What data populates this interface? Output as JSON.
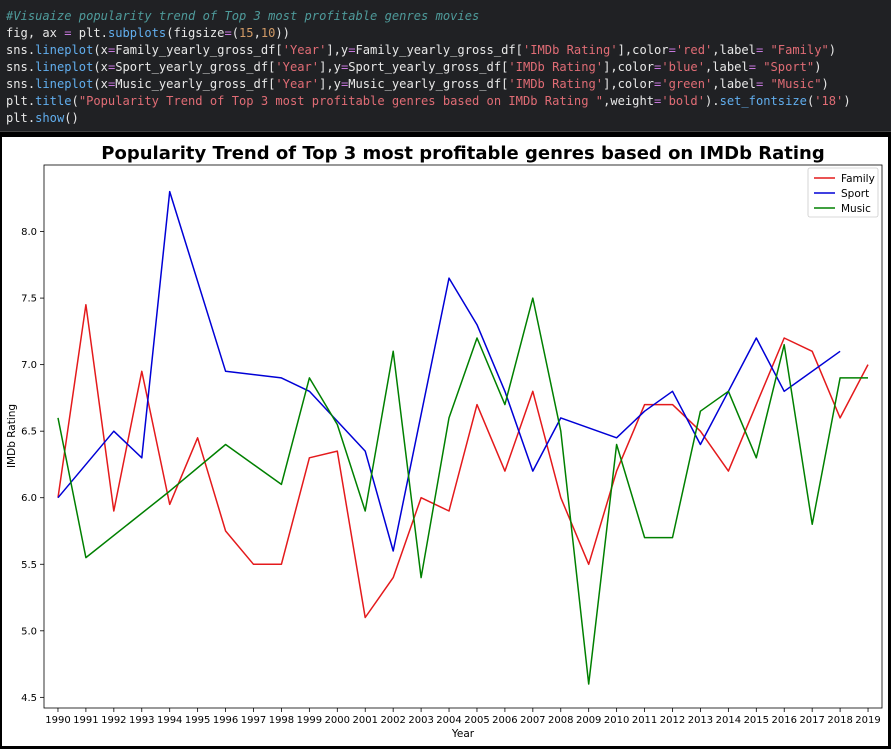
{
  "code_cell": {
    "lines": [
      [
        {
          "t": "#Visuaize popularity trend of Top 3 most profitable genres movies",
          "c": "comment"
        }
      ],
      [
        {
          "t": "fig, ax "
        },
        {
          "t": "=",
          "c": "op"
        },
        {
          "t": " plt."
        },
        {
          "t": "subplots",
          "c": "fn"
        },
        {
          "t": "(figsize"
        },
        {
          "t": "=",
          "c": "op"
        },
        {
          "t": "("
        },
        {
          "t": "15",
          "c": "num"
        },
        {
          "t": ","
        },
        {
          "t": "10",
          "c": "num"
        },
        {
          "t": "))"
        }
      ],
      [
        {
          "t": "sns."
        },
        {
          "t": "lineplot",
          "c": "fn"
        },
        {
          "t": "(x"
        },
        {
          "t": "=",
          "c": "op"
        },
        {
          "t": "Family_yearly_gross_df["
        },
        {
          "t": "'Year'",
          "c": "str"
        },
        {
          "t": "],y"
        },
        {
          "t": "=",
          "c": "op"
        },
        {
          "t": "Family_yearly_gross_df["
        },
        {
          "t": "'IMDb Rating'",
          "c": "str"
        },
        {
          "t": "],color"
        },
        {
          "t": "=",
          "c": "op"
        },
        {
          "t": "'red'",
          "c": "str"
        },
        {
          "t": ",label"
        },
        {
          "t": "=",
          "c": "op"
        },
        {
          "t": " "
        },
        {
          "t": "\"Family\"",
          "c": "str"
        },
        {
          "t": ")"
        }
      ],
      [
        {
          "t": "sns."
        },
        {
          "t": "lineplot",
          "c": "fn"
        },
        {
          "t": "(x"
        },
        {
          "t": "=",
          "c": "op"
        },
        {
          "t": "Sport_yearly_gross_df["
        },
        {
          "t": "'Year'",
          "c": "str"
        },
        {
          "t": "],y"
        },
        {
          "t": "=",
          "c": "op"
        },
        {
          "t": "Sport_yearly_gross_df["
        },
        {
          "t": "'IMDb Rating'",
          "c": "str"
        },
        {
          "t": "],color"
        },
        {
          "t": "=",
          "c": "op"
        },
        {
          "t": "'blue'",
          "c": "str"
        },
        {
          "t": ",label"
        },
        {
          "t": "=",
          "c": "op"
        },
        {
          "t": " "
        },
        {
          "t": "\"Sport\"",
          "c": "str"
        },
        {
          "t": ")"
        }
      ],
      [
        {
          "t": "sns."
        },
        {
          "t": "lineplot",
          "c": "fn"
        },
        {
          "t": "(x"
        },
        {
          "t": "=",
          "c": "op"
        },
        {
          "t": "Music_yearly_gross_df["
        },
        {
          "t": "'Year'",
          "c": "str"
        },
        {
          "t": "],y"
        },
        {
          "t": "=",
          "c": "op"
        },
        {
          "t": "Music_yearly_gross_df["
        },
        {
          "t": "'IMDb Rating'",
          "c": "str"
        },
        {
          "t": "],color"
        },
        {
          "t": "=",
          "c": "op"
        },
        {
          "t": "'green'",
          "c": "str"
        },
        {
          "t": ",label"
        },
        {
          "t": "=",
          "c": "op"
        },
        {
          "t": " "
        },
        {
          "t": "\"Music\"",
          "c": "str"
        },
        {
          "t": ")"
        }
      ],
      [
        {
          "t": "plt."
        },
        {
          "t": "title",
          "c": "fn"
        },
        {
          "t": "("
        },
        {
          "t": "\"Popularity Trend of Top 3 most profitable genres based on IMDb Rating \"",
          "c": "str"
        },
        {
          "t": ",weight"
        },
        {
          "t": "=",
          "c": "op"
        },
        {
          "t": "'bold'",
          "c": "str"
        },
        {
          "t": ")."
        },
        {
          "t": "set_fontsize",
          "c": "fn"
        },
        {
          "t": "("
        },
        {
          "t": "'18'",
          "c": "str"
        },
        {
          "t": ")"
        }
      ],
      [
        {
          "t": "plt."
        },
        {
          "t": "show",
          "c": "fn"
        },
        {
          "t": "()"
        }
      ]
    ]
  },
  "chart_data": {
    "type": "line",
    "title": "Popularity Trend of Top 3 most profitable genres based on IMDb Rating",
    "xlabel": "Year",
    "ylabel": "IMDb Rating",
    "x": [
      1990,
      1991,
      1992,
      1993,
      1994,
      1995,
      1996,
      1997,
      1998,
      1999,
      2000,
      2001,
      2002,
      2003,
      2004,
      2005,
      2006,
      2007,
      2008,
      2009,
      2010,
      2011,
      2012,
      2013,
      2014,
      2015,
      2016,
      2017,
      2018,
      2019
    ],
    "yticks": [
      4.5,
      5.0,
      5.5,
      6.0,
      6.5,
      7.0,
      7.5,
      8.0
    ],
    "ytick_labels": [
      "4.5",
      "5.0",
      "5.5",
      "6.0",
      "6.5",
      "7.0",
      "7.5",
      "8.0"
    ],
    "ylim": [
      4.42,
      8.5
    ],
    "xlim": [
      1989.5,
      2019.5
    ],
    "grid": false,
    "legend_position": "top-right",
    "series": [
      {
        "name": "Family",
        "color": "#e41a1c",
        "values": [
          {
            "x": 1990,
            "y": 6.0
          },
          {
            "x": 1991,
            "y": 7.45
          },
          {
            "x": 1992,
            "y": 5.9
          },
          {
            "x": 1993,
            "y": 6.95
          },
          {
            "x": 1994,
            "y": 5.95
          },
          {
            "x": 1995,
            "y": 6.45
          },
          {
            "x": 1996,
            "y": 5.75
          },
          {
            "x": 1997,
            "y": 5.5
          },
          {
            "x": 1998,
            "y": 5.5
          },
          {
            "x": 1999,
            "y": 6.3
          },
          {
            "x": 2000,
            "y": 6.35
          },
          {
            "x": 2001,
            "y": 5.1
          },
          {
            "x": 2002,
            "y": 5.4
          },
          {
            "x": 2003,
            "y": 6.0
          },
          {
            "x": 2004,
            "y": 5.9
          },
          {
            "x": 2005,
            "y": 6.7
          },
          {
            "x": 2006,
            "y": 6.2
          },
          {
            "x": 2007,
            "y": 6.8
          },
          {
            "x": 2008,
            "y": 6.0
          },
          {
            "x": 2009,
            "y": 5.5
          },
          {
            "x": 2010,
            "y": 6.2
          },
          {
            "x": 2011,
            "y": 6.7
          },
          {
            "x": 2012,
            "y": 6.7
          },
          {
            "x": 2013,
            "y": 6.5
          },
          {
            "x": 2014,
            "y": 6.2
          },
          {
            "x": 2015,
            "y": 6.7
          },
          {
            "x": 2016,
            "y": 7.2
          },
          {
            "x": 2017,
            "y": 7.1
          },
          {
            "x": 2018,
            "y": 6.6
          },
          {
            "x": 2019,
            "y": 7.0
          }
        ]
      },
      {
        "name": "Sport",
        "color": "#0000d6",
        "values": [
          {
            "x": 1990,
            "y": 6.0
          },
          {
            "x": 1992,
            "y": 6.5
          },
          {
            "x": 1993,
            "y": 6.3
          },
          {
            "x": 1994,
            "y": 8.3
          },
          {
            "x": 1996,
            "y": 6.95
          },
          {
            "x": 1998,
            "y": 6.9
          },
          {
            "x": 1999,
            "y": 6.8
          },
          {
            "x": 2001,
            "y": 6.35
          },
          {
            "x": 2002,
            "y": 5.6
          },
          {
            "x": 2004,
            "y": 7.65
          },
          {
            "x": 2005,
            "y": 7.3
          },
          {
            "x": 2006,
            "y": 6.8
          },
          {
            "x": 2007,
            "y": 6.2
          },
          {
            "x": 2008,
            "y": 6.6
          },
          {
            "x": 2010,
            "y": 6.45
          },
          {
            "x": 2011,
            "y": 6.65
          },
          {
            "x": 2012,
            "y": 6.8
          },
          {
            "x": 2013,
            "y": 6.4
          },
          {
            "x": 2014,
            "y": 6.8
          },
          {
            "x": 2015,
            "y": 7.2
          },
          {
            "x": 2016,
            "y": 6.8
          },
          {
            "x": 2018,
            "y": 7.1
          }
        ]
      },
      {
        "name": "Music",
        "color": "#008000",
        "values": [
          {
            "x": 1990,
            "y": 6.6
          },
          {
            "x": 1991,
            "y": 5.55
          },
          {
            "x": 1994,
            "y": 6.05
          },
          {
            "x": 1996,
            "y": 6.4
          },
          {
            "x": 1998,
            "y": 6.1
          },
          {
            "x": 1999,
            "y": 6.9
          },
          {
            "x": 2000,
            "y": 6.55
          },
          {
            "x": 2001,
            "y": 5.9
          },
          {
            "x": 2002,
            "y": 7.1
          },
          {
            "x": 2003,
            "y": 5.4
          },
          {
            "x": 2004,
            "y": 6.6
          },
          {
            "x": 2005,
            "y": 7.2
          },
          {
            "x": 2006,
            "y": 6.7
          },
          {
            "x": 2007,
            "y": 7.5
          },
          {
            "x": 2008,
            "y": 6.5
          },
          {
            "x": 2009,
            "y": 4.6
          },
          {
            "x": 2010,
            "y": 6.4
          },
          {
            "x": 2011,
            "y": 5.7
          },
          {
            "x": 2012,
            "y": 5.7
          },
          {
            "x": 2013,
            "y": 6.65
          },
          {
            "x": 2014,
            "y": 6.8
          },
          {
            "x": 2015,
            "y": 6.3
          },
          {
            "x": 2016,
            "y": 7.15
          },
          {
            "x": 2017,
            "y": 5.8
          },
          {
            "x": 2018,
            "y": 6.9
          },
          {
            "x": 2019,
            "y": 6.9
          }
        ]
      }
    ]
  }
}
